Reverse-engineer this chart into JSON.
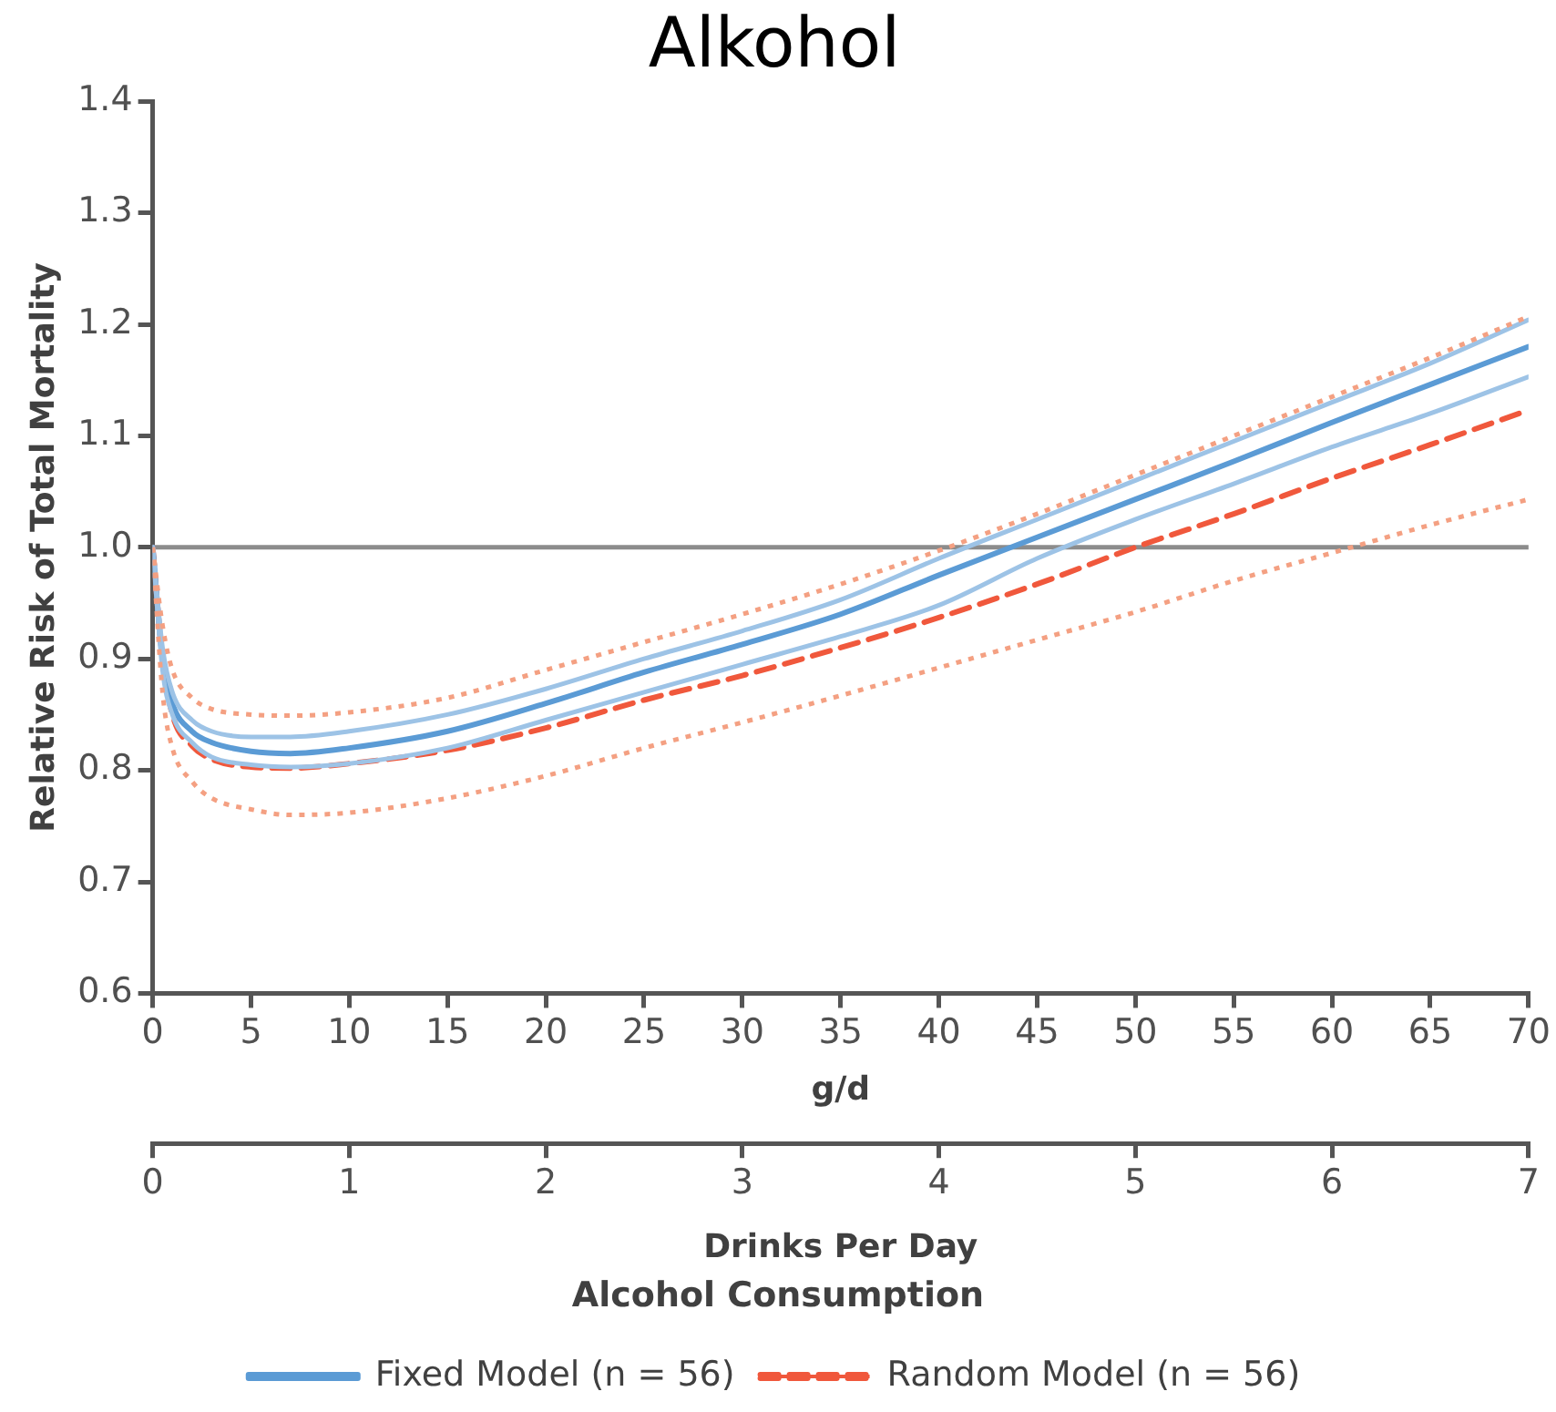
{
  "chart_data": {
    "type": "line",
    "title": "Alkohol",
    "xlabel": "g/d",
    "ylabel": "Relative Risk of Total Mortality",
    "x2label": "Drinks Per Day",
    "annotations": [
      "Alcohol Consumption"
    ],
    "x": [
      0,
      0.5,
      1,
      2,
      3,
      5,
      7,
      10,
      15,
      20,
      25,
      30,
      35,
      40,
      45,
      50,
      55,
      60,
      65,
      70
    ],
    "xlim": [
      0,
      70
    ],
    "xticks": [
      0,
      5,
      10,
      15,
      20,
      25,
      30,
      35,
      40,
      45,
      50,
      55,
      60,
      65,
      70
    ],
    "x2lim": [
      0,
      7
    ],
    "x2ticks": [
      0,
      1,
      2,
      3,
      4,
      5,
      6,
      7
    ],
    "ylim": [
      0.6,
      1.4
    ],
    "yticks": [
      0.6,
      0.7,
      0.8,
      0.9,
      {
        "value": 1,
        "label": "1.0"
      },
      1.1,
      1.2,
      1.3,
      1.4
    ],
    "grid": false,
    "legend": "bottom",
    "marker": "none",
    "ref_lines": [
      {
        "axis": "y",
        "value": 1.0,
        "color": "#8c8c8c"
      }
    ],
    "series": [
      {
        "color": "#f4a082",
        "line_style": "dotted",
        "values": [
          1.0,
          0.93,
          0.89,
          0.865,
          0.855,
          0.85,
          0.849,
          0.852,
          0.865,
          0.89,
          0.915,
          0.94,
          0.967,
          0.997,
          1.03,
          1.065,
          1.1,
          1.135,
          1.17,
          1.207
        ]
      },
      {
        "color": "#f4a082",
        "line_style": "dotted",
        "values": [
          1.0,
          0.87,
          0.82,
          0.79,
          0.775,
          0.765,
          0.76,
          0.762,
          0.775,
          0.795,
          0.82,
          0.843,
          0.867,
          0.892,
          0.917,
          0.942,
          0.97,
          0.995,
          1.02,
          1.043
        ]
      },
      {
        "color": "#9dc3e6",
        "line_style": "solid",
        "values": [
          1.0,
          0.91,
          0.87,
          0.845,
          0.835,
          0.83,
          0.83,
          0.835,
          0.85,
          0.873,
          0.9,
          0.925,
          0.953,
          0.99,
          1.025,
          1.06,
          1.095,
          1.13,
          1.165,
          1.204
        ]
      },
      {
        "color": "#9dc3e6",
        "line_style": "solid",
        "values": [
          1.0,
          0.89,
          0.85,
          0.825,
          0.812,
          0.805,
          0.803,
          0.806,
          0.82,
          0.845,
          0.87,
          0.895,
          0.92,
          0.948,
          0.99,
          1.025,
          1.057,
          1.09,
          1.12,
          1.153
        ]
      },
      {
        "name": "Fixed Model (n = 56)",
        "color": "#5b9bd5",
        "line_style": "solid",
        "values": [
          1.0,
          0.9,
          0.86,
          0.835,
          0.825,
          0.817,
          0.815,
          0.82,
          0.835,
          0.86,
          0.888,
          0.913,
          0.94,
          0.975,
          1.009,
          1.043,
          1.077,
          1.112,
          1.146,
          1.18
        ]
      },
      {
        "name": "Random Model (n = 56)",
        "color": "#f0583c",
        "line_style": "dashed",
        "values": [
          1.0,
          0.9,
          0.85,
          0.822,
          0.81,
          0.803,
          0.802,
          0.806,
          0.818,
          0.838,
          0.863,
          0.885,
          0.91,
          0.937,
          0.967,
          1.0,
          1.03,
          1.062,
          1.092,
          1.123
        ]
      }
    ]
  }
}
